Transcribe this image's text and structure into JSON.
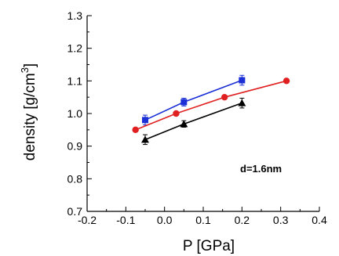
{
  "chart_data": {
    "type": "line",
    "title": "",
    "xlabel": "P [GPa]",
    "ylabel": "density [g/cm3]",
    "xlim": [
      -0.2,
      0.4
    ],
    "ylim": [
      0.7,
      1.3
    ],
    "xticks": [
      "-0.2",
      "-0.1",
      "0.0",
      "0.1",
      "0.2",
      "0.3",
      "0.4"
    ],
    "yticks": [
      "0.7",
      "0.8",
      "0.9",
      "1.0",
      "1.1",
      "1.2",
      "1.3"
    ],
    "grid": false,
    "legend": "none",
    "annotations": [
      {
        "text": "d=1.6nm"
      }
    ],
    "series": [
      {
        "color": "#1a2fd6",
        "marker": "square",
        "points": [
          {
            "x": -0.05,
            "y": 0.98,
            "err": 0.015
          },
          {
            "x": 0.05,
            "y": 1.035,
            "err": 0.012
          },
          {
            "x": 0.2,
            "y": 1.102,
            "err": 0.015
          }
        ]
      },
      {
        "color": "#e02020",
        "marker": "circle",
        "points": [
          {
            "x": -0.075,
            "y": 0.95
          },
          {
            "x": 0.03,
            "y": 1.0
          },
          {
            "x": 0.155,
            "y": 1.05
          },
          {
            "x": 0.315,
            "y": 1.1
          }
        ]
      },
      {
        "color": "#000000",
        "marker": "triangle",
        "points": [
          {
            "x": -0.05,
            "y": 0.92,
            "err": 0.015
          },
          {
            "x": 0.05,
            "y": 0.968,
            "err": 0.01
          },
          {
            "x": 0.2,
            "y": 1.032,
            "err": 0.015
          }
        ]
      }
    ]
  }
}
